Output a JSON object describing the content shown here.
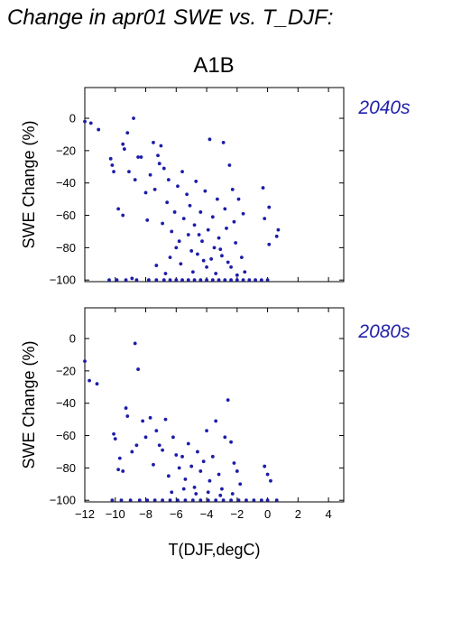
{
  "header": {
    "title": "Change in apr01 SWE vs. T_DJF:",
    "scenario": "A1B"
  },
  "colors": {
    "points": "#1c1ca8",
    "panel_label": "#2222aa"
  },
  "chart_data": [
    {
      "type": "scatter",
      "panel_label": "2040s",
      "xlabel": "",
      "ylabel": "SWE Change (%)",
      "xlim": [
        -12,
        5
      ],
      "ylim": [
        -101,
        19
      ],
      "xticks": [
        -12,
        -10,
        -8,
        -6,
        -4,
        -2,
        0,
        2,
        4
      ],
      "yticks": [
        0,
        -20,
        -40,
        -60,
        -80,
        -100
      ],
      "x_tick_labels_shown": false,
      "points": [
        [
          -12,
          -2
        ],
        [
          -11.6,
          -3
        ],
        [
          -11.1,
          -7
        ],
        [
          -8.8,
          0
        ],
        [
          -9.2,
          -9
        ],
        [
          -10.3,
          -25
        ],
        [
          -10.2,
          -29
        ],
        [
          -10.1,
          -33
        ],
        [
          -9.8,
          -56
        ],
        [
          -9.5,
          -60
        ],
        [
          -9.5,
          -16
        ],
        [
          -9.4,
          -19
        ],
        [
          -9.1,
          -33
        ],
        [
          -8.7,
          -38
        ],
        [
          -8.5,
          -24
        ],
        [
          -8.3,
          -24
        ],
        [
          -8.0,
          -46
        ],
        [
          -7.9,
          -63
        ],
        [
          -7.7,
          -35
        ],
        [
          -7.5,
          -15
        ],
        [
          -7.4,
          -44
        ],
        [
          -7.2,
          -23
        ],
        [
          -7.1,
          -28
        ],
        [
          -7.0,
          -17
        ],
        [
          -6.9,
          -65
        ],
        [
          -6.8,
          -31
        ],
        [
          -6.6,
          -52
        ],
        [
          -6.5,
          -38
        ],
        [
          -6.3,
          -70
        ],
        [
          -6.1,
          -58
        ],
        [
          -5.9,
          -42
        ],
        [
          -5.8,
          -76
        ],
        [
          -5.6,
          -33
        ],
        [
          -5.5,
          -62
        ],
        [
          -5.3,
          -47
        ],
        [
          -5.1,
          -54
        ],
        [
          -5.0,
          -82
        ],
        [
          -4.8,
          -66
        ],
        [
          -4.7,
          -39
        ],
        [
          -4.5,
          -72
        ],
        [
          -4.4,
          -58
        ],
        [
          -4.2,
          -88
        ],
        [
          -4.1,
          -45
        ],
        [
          -3.9,
          -69
        ],
        [
          -3.8,
          -13
        ],
        [
          -3.6,
          -61
        ],
        [
          -3.5,
          -80
        ],
        [
          -3.3,
          -50
        ],
        [
          -3.2,
          -74
        ],
        [
          -3.0,
          -85
        ],
        [
          -2.9,
          -15
        ],
        [
          -2.8,
          -56
        ],
        [
          -2.7,
          -68
        ],
        [
          -2.5,
          -29
        ],
        [
          -2.4,
          -92
        ],
        [
          -2.3,
          -44
        ],
        [
          -2.2,
          -64
        ],
        [
          -2.1,
          -77
        ],
        [
          -1.9,
          -50
        ],
        [
          -1.7,
          -86
        ],
        [
          -1.6,
          -59
        ],
        [
          -1.5,
          -95
        ],
        [
          -0.3,
          -43
        ],
        [
          -0.2,
          -62
        ],
        [
          0.1,
          -78
        ],
        [
          0.1,
          -55
        ],
        [
          0.6,
          -73
        ],
        [
          0.7,
          -69
        ],
        [
          -6.0,
          -80
        ],
        [
          -5.7,
          -90
        ],
        [
          -5.2,
          -72
        ],
        [
          -4.9,
          -95
        ],
        [
          -4.6,
          -84
        ],
        [
          -4.3,
          -76
        ],
        [
          -4.0,
          -92
        ],
        [
          -3.7,
          -87
        ],
        [
          -3.4,
          -96
        ],
        [
          -3.1,
          -81
        ],
        [
          -2.6,
          -89
        ],
        [
          -2.0,
          -97
        ],
        [
          -7.3,
          -91
        ],
        [
          -6.4,
          -86
        ],
        [
          -6.7,
          -96
        ],
        [
          -8.9,
          -99
        ],
        [
          -10.4,
          -100
        ],
        [
          -9.9,
          -100
        ],
        [
          -9.3,
          -100
        ],
        [
          -8.6,
          -100
        ],
        [
          -7.8,
          -100
        ],
        [
          -7.3,
          -100
        ],
        [
          -6.8,
          -100
        ],
        [
          -6.4,
          -100
        ],
        [
          -6.0,
          -100
        ],
        [
          -5.6,
          -100
        ],
        [
          -5.2,
          -100
        ],
        [
          -4.8,
          -100
        ],
        [
          -4.4,
          -100
        ],
        [
          -4.0,
          -100
        ],
        [
          -3.6,
          -100
        ],
        [
          -3.2,
          -100
        ],
        [
          -2.8,
          -100
        ],
        [
          -2.4,
          -100
        ],
        [
          -2.0,
          -100
        ],
        [
          -1.6,
          -100
        ],
        [
          -1.2,
          -100
        ],
        [
          -0.8,
          -100
        ],
        [
          -0.4,
          -100
        ],
        [
          0.0,
          -100
        ]
      ]
    },
    {
      "type": "scatter",
      "panel_label": "2080s",
      "xlabel": "T(DJF,degC)",
      "ylabel": "SWE Change (%)",
      "xlim": [
        -12,
        5
      ],
      "ylim": [
        -101,
        19
      ],
      "xticks": [
        -12,
        -10,
        -8,
        -6,
        -4,
        -2,
        0,
        2,
        4
      ],
      "x_tick_labels": [
        "−12",
        "−10",
        "−8",
        "−6",
        "−4",
        "−2",
        "0",
        "2",
        "4"
      ],
      "yticks": [
        0,
        -20,
        -40,
        -60,
        -80,
        -100
      ],
      "x_tick_labels_shown": true,
      "points": [
        [
          -12,
          -14
        ],
        [
          -11.7,
          -26
        ],
        [
          -11.2,
          -28
        ],
        [
          -8.7,
          -3
        ],
        [
          -8.5,
          -19
        ],
        [
          -9.3,
          -43
        ],
        [
          -9.2,
          -48
        ],
        [
          -10.1,
          -59
        ],
        [
          -10.0,
          -62
        ],
        [
          -9.8,
          -81
        ],
        [
          -9.5,
          -82
        ],
        [
          -9.7,
          -74
        ],
        [
          -8.9,
          -70
        ],
        [
          -8.6,
          -66
        ],
        [
          -8.2,
          -51
        ],
        [
          -8.0,
          -61
        ],
        [
          -7.7,
          -49
        ],
        [
          -7.5,
          -78
        ],
        [
          -7.3,
          -57
        ],
        [
          -7.1,
          -66
        ],
        [
          -6.9,
          -69
        ],
        [
          -6.7,
          -50
        ],
        [
          -6.5,
          -85
        ],
        [
          -6.2,
          -61
        ],
        [
          -6.0,
          -72
        ],
        [
          -5.8,
          -80
        ],
        [
          -5.6,
          -73
        ],
        [
          -5.4,
          -87
        ],
        [
          -5.2,
          -65
        ],
        [
          -5.0,
          -79
        ],
        [
          -4.8,
          -92
        ],
        [
          -4.6,
          -70
        ],
        [
          -4.4,
          -82
        ],
        [
          -4.2,
          -76
        ],
        [
          -4.0,
          -57
        ],
        [
          -3.8,
          -88
        ],
        [
          -3.6,
          -73
        ],
        [
          -3.4,
          -51
        ],
        [
          -3.2,
          -84
        ],
        [
          -3.0,
          -93
        ],
        [
          -2.8,
          -61
        ],
        [
          -2.6,
          -38
        ],
        [
          -2.4,
          -64
        ],
        [
          -2.2,
          -77
        ],
        [
          -2.0,
          -82
        ],
        [
          -1.8,
          -90
        ],
        [
          -0.2,
          -79
        ],
        [
          0.0,
          -84
        ],
        [
          0.2,
          -88
        ],
        [
          -6.3,
          -95
        ],
        [
          -5.5,
          -93
        ],
        [
          -4.7,
          -96
        ],
        [
          -3.9,
          -95
        ],
        [
          -3.1,
          -97
        ],
        [
          -2.3,
          -96
        ],
        [
          -10.2,
          -100
        ],
        [
          -9.6,
          -100
        ],
        [
          -9.0,
          -100
        ],
        [
          -8.4,
          -100
        ],
        [
          -7.9,
          -100
        ],
        [
          -7.4,
          -100
        ],
        [
          -6.9,
          -100
        ],
        [
          -6.4,
          -100
        ],
        [
          -5.9,
          -100
        ],
        [
          -5.4,
          -100
        ],
        [
          -4.9,
          -100
        ],
        [
          -4.4,
          -100
        ],
        [
          -3.9,
          -100
        ],
        [
          -3.4,
          -100
        ],
        [
          -2.9,
          -100
        ],
        [
          -2.4,
          -100
        ],
        [
          -1.9,
          -100
        ],
        [
          -1.4,
          -100
        ],
        [
          -0.9,
          -100
        ],
        [
          -0.4,
          -100
        ],
        [
          0.0,
          -100
        ],
        [
          0.6,
          -100
        ]
      ]
    }
  ]
}
